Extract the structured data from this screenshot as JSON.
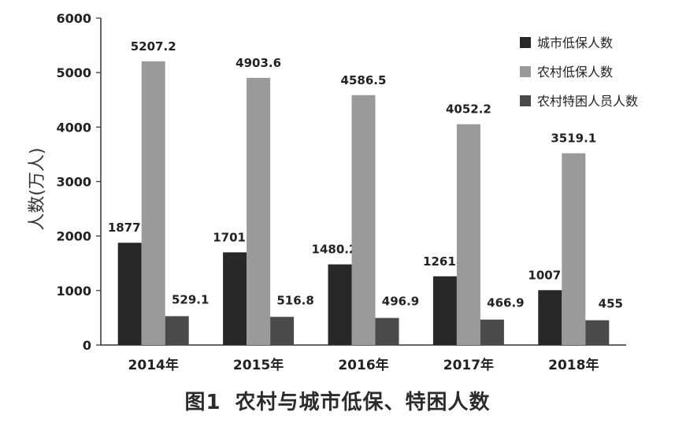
{
  "caption": {
    "figure_no": "图1",
    "title": "农村与城市低保、特困人数"
  },
  "chart_data": {
    "type": "bar",
    "ylabel": "人数(万人)",
    "xlabel": "",
    "ylim": [
      0,
      6000
    ],
    "yticks": [
      "0",
      "1000",
      "2000",
      "3000",
      "4000",
      "5000",
      "6000"
    ],
    "categories": [
      "2014年",
      "2015年",
      "2016年",
      "2017年",
      "2018年"
    ],
    "series": [
      {
        "name": "城市低保人数",
        "values": [
          1877,
          1701,
          1480.2,
          1261,
          1007
        ],
        "labels": [
          "1877",
          "1701",
          "1480.2",
          "1261",
          "1007"
        ]
      },
      {
        "name": "农村低保人数",
        "values": [
          5207.2,
          4903.6,
          4586.5,
          4052.2,
          3519.1
        ],
        "labels": [
          "5207.2",
          "4903.6",
          "4586.5",
          "4052.2",
          "3519.1"
        ]
      },
      {
        "name": "农村特困人员人数",
        "values": [
          529.1,
          516.8,
          496.9,
          466.9,
          455
        ],
        "labels": [
          "529.1",
          "516.8",
          "496.9",
          "466.9",
          "455"
        ]
      }
    ],
    "colors": [
      "#272727",
      "#9a9a9a",
      "#4a4a4a"
    ],
    "legend": "right",
    "grid": false
  }
}
